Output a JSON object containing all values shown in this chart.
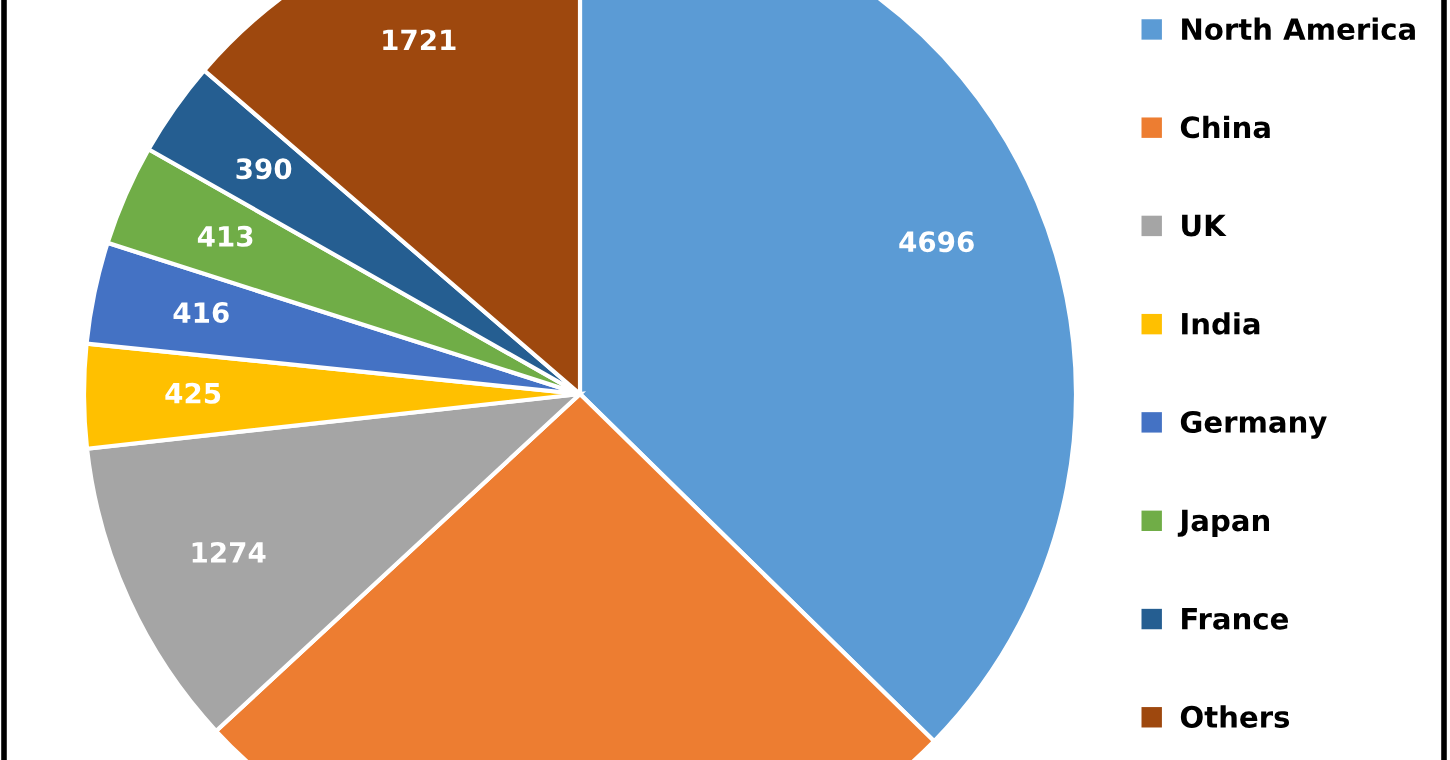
{
  "chart_data": {
    "type": "pie",
    "categories": [
      "North America",
      "China",
      "UK",
      "India",
      "Germany",
      "Japan",
      "France",
      "Others"
    ],
    "values": [
      4696,
      3240,
      1274,
      425,
      416,
      413,
      390,
      1721
    ],
    "value_labels": [
      "4696",
      null,
      "1274",
      "425",
      "416",
      "413",
      "390",
      "1721"
    ],
    "colors": [
      "#5b9bd5",
      "#ed7d31",
      "#a5a5a5",
      "#ffc000",
      "#4472c4",
      "#70ad47",
      "#255e91",
      "#9e480e"
    ],
    "legend": "right"
  }
}
